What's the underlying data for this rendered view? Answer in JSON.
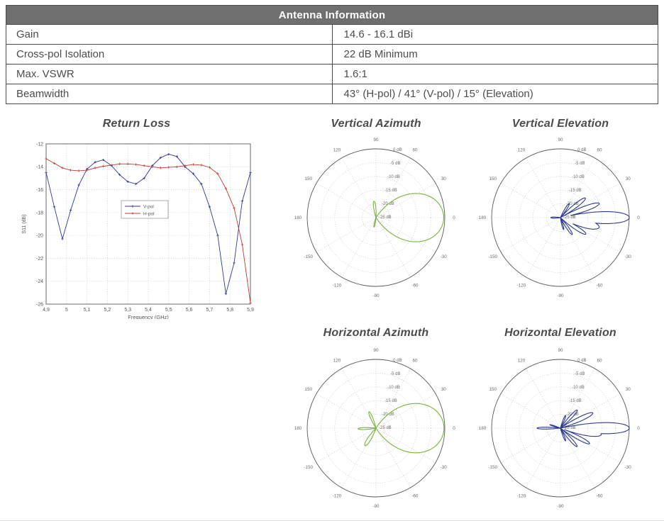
{
  "table": {
    "title": "Antenna Information",
    "rows": [
      {
        "label": "Gain",
        "value": "14.6 - 16.1 dBi"
      },
      {
        "label": "Cross-pol Isolation",
        "value": "22 dB Minimum"
      },
      {
        "label": "Max. VSWR",
        "value": "1.6:1"
      },
      {
        "label": "Beamwidth",
        "value": "43° (H-pol) / 41° (V-pol) / 15° (Elevation)"
      }
    ]
  },
  "colors": {
    "header_bg": "#6f6f6f",
    "header_text": "#ffffff",
    "table_border": "#4a4a4a",
    "axis": "#5a5a5a",
    "grid": "#b3b3b3",
    "tick_text": "#555555",
    "vpol_blue": "#2e3a8c",
    "hpol_red": "#bf3a32",
    "polar_green": "#7db23e",
    "polar_navy": "#2e3a8c"
  },
  "chart_data": [
    {
      "type": "line",
      "title": "Return Loss",
      "xlabel": "Frequency (GHz)",
      "ylabel": "S11 (dB)",
      "xlim": [
        4.9,
        5.9
      ],
      "ylim": [
        -26,
        -12
      ],
      "xtick_values": [
        4.9,
        5.0,
        5.1,
        5.2,
        5.3,
        5.4,
        5.5,
        5.6,
        5.7,
        5.8,
        5.9
      ],
      "xtick_labels": [
        "4,9",
        "5",
        "5,1",
        "5,2",
        "5,3",
        "5,4",
        "5,5",
        "5,6",
        "5,7",
        "5,8",
        "5,9"
      ],
      "ytick_values": [
        -12,
        -14,
        -16,
        -18,
        -20,
        -22,
        -24,
        -26
      ],
      "ytick_labels": [
        "-12",
        "-14",
        "-16",
        "-18",
        "-20",
        "-22",
        "-24",
        "-26"
      ],
      "grid": true,
      "legend_position": "center-left-inside",
      "x": [
        4.9,
        4.94,
        4.98,
        5.02,
        5.06,
        5.1,
        5.14,
        5.18,
        5.22,
        5.26,
        5.3,
        5.34,
        5.38,
        5.42,
        5.46,
        5.5,
        5.54,
        5.58,
        5.62,
        5.66,
        5.7,
        5.74,
        5.78,
        5.82,
        5.86,
        5.9
      ],
      "series": [
        {
          "name": "V-pol",
          "color": "#2e3a8c",
          "values": [
            -14.5,
            -17.5,
            -20.3,
            -17.8,
            -15.6,
            -14.2,
            -13.6,
            -13.4,
            -13.9,
            -14.7,
            -15.3,
            -15.5,
            -15.0,
            -13.9,
            -13.2,
            -12.9,
            -13.1,
            -14.0,
            -14.6,
            -15.5,
            -17.5,
            -20.0,
            -25.1,
            -22.4,
            -17.0,
            -14.5
          ]
        },
        {
          "name": "H-pol",
          "color": "#bf3a32",
          "values": [
            -13.3,
            -13.7,
            -14.1,
            -14.3,
            -14.35,
            -14.3,
            -14.1,
            -13.95,
            -13.85,
            -13.75,
            -13.75,
            -13.8,
            -13.9,
            -14.0,
            -14.1,
            -14.05,
            -14.0,
            -13.9,
            -13.8,
            -13.85,
            -14.05,
            -14.6,
            -15.9,
            -17.6,
            -20.8,
            -25.9
          ]
        }
      ]
    },
    {
      "type": "polar",
      "title": "Vertical Azimuth",
      "color": "#7db23e",
      "rmin": -25,
      "rmax": 0,
      "radial_labels": [
        "0 dB",
        "-5 dB",
        "-10 dB",
        "-15 dB",
        "-20 dB",
        "-25 dB"
      ],
      "angle_labels": [
        "0",
        "30",
        "60",
        "90",
        "120",
        "150",
        "180",
        "-150",
        "-120",
        "-90",
        "-60",
        "-30"
      ],
      "angle_values": [
        0,
        30,
        60,
        90,
        120,
        150,
        180,
        210,
        240,
        270,
        300,
        330
      ],
      "beamwidth_deg": 41,
      "lobes": [
        {
          "center": 0,
          "peak": -0.4,
          "base": 56
        },
        {
          "center": 97,
          "peak": -19.0,
          "base": 10
        },
        {
          "center": -102,
          "peak": -21.5,
          "base": 8
        }
      ]
    },
    {
      "type": "polar",
      "title": "Vertical Elevation",
      "color": "#2e3a8c",
      "rmin": -25,
      "rmax": 0,
      "radial_labels": [
        "0 dB",
        "-5 dB",
        "-10 dB",
        "-15 dB",
        "-20 dB",
        "-25 dB"
      ],
      "angle_labels": [
        "0",
        "30",
        "60",
        "90",
        "120",
        "150",
        "180",
        "-150",
        "-120",
        "-90",
        "-60",
        "-30"
      ],
      "angle_values": [
        0,
        30,
        60,
        90,
        120,
        150,
        180,
        210,
        240,
        270,
        300,
        330
      ],
      "beamwidth_deg": 15,
      "lobes": [
        {
          "center": 0,
          "peak": 0,
          "base": 13
        },
        {
          "center": -14,
          "peak": -10.5,
          "base": 15
        },
        {
          "center": 20,
          "peak": -10.0,
          "base": 9
        },
        {
          "center": 38,
          "peak": -13.5,
          "base": 9
        },
        {
          "center": 58,
          "peak": -19.0,
          "base": 8
        },
        {
          "center": -33,
          "peak": -14.0,
          "base": 9
        },
        {
          "center": -55,
          "peak": -17.5,
          "base": 8
        },
        {
          "center": -75,
          "peak": -20.5,
          "base": 7
        },
        {
          "center": 180,
          "peak": -21.5,
          "base": 9
        }
      ]
    },
    {
      "type": "polar",
      "title": "Horizontal Azimuth",
      "color": "#7db23e",
      "rmin": -25,
      "rmax": 0,
      "radial_labels": [
        "0 dB",
        "-5 dB",
        "-10 dB",
        "-15 dB",
        "-20 dB",
        "-25 dB"
      ],
      "angle_labels": [
        "0",
        "30",
        "60",
        "90",
        "120",
        "150",
        "180",
        "-150",
        "-120",
        "-90",
        "-60",
        "-30"
      ],
      "angle_values": [
        0,
        30,
        60,
        90,
        120,
        150,
        180,
        210,
        240,
        270,
        300,
        330
      ],
      "beamwidth_deg": 43,
      "lobes": [
        {
          "center": 0,
          "peak": -0.3,
          "base": 57
        },
        {
          "center": -122,
          "peak": -17.5,
          "base": 13
        },
        {
          "center": 113,
          "peak": -18.5,
          "base": 9
        },
        {
          "center": 182,
          "peak": -18.5,
          "base": 8
        }
      ]
    },
    {
      "type": "polar",
      "title": "Horizontal Elevation",
      "color": "#2e3a8c",
      "rmin": -25,
      "rmax": 0,
      "radial_labels": [
        "0 dB",
        "-5 dB",
        "-10 dB",
        "-15 dB",
        "-20 dB",
        "-25 dB"
      ],
      "angle_labels": [
        "0",
        "30",
        "60",
        "90",
        "120",
        "150",
        "180",
        "-150",
        "-120",
        "-90",
        "-60",
        "-30"
      ],
      "angle_values": [
        0,
        30,
        60,
        90,
        120,
        150,
        180,
        210,
        240,
        270,
        300,
        330
      ],
      "beamwidth_deg": 15,
      "lobes": [
        {
          "center": 0,
          "peak": 0,
          "base": 12
        },
        {
          "center": -9,
          "peak": -10.0,
          "base": 12
        },
        {
          "center": 25,
          "peak": -12.0,
          "base": 9
        },
        {
          "center": 47,
          "peak": -16.0,
          "base": 8
        },
        {
          "center": 68,
          "peak": -20.0,
          "base": 7
        },
        {
          "center": -28,
          "peak": -13.0,
          "base": 8
        },
        {
          "center": -48,
          "peak": -16.0,
          "base": 8
        },
        {
          "center": -68,
          "peak": -20.0,
          "base": 7
        },
        {
          "center": 180,
          "peak": -16.5,
          "base": 6
        },
        {
          "center": 162,
          "peak": -21.0,
          "base": 5
        }
      ]
    }
  ]
}
